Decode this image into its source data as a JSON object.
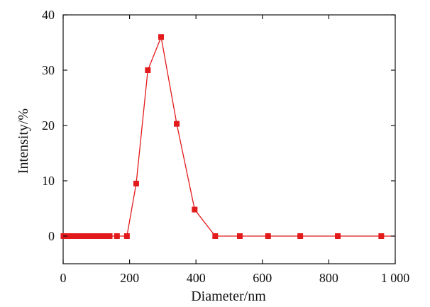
{
  "chart_data": {
    "type": "line",
    "title": "",
    "xlabel": "Diameter/nm",
    "ylabel": "Intensity/%",
    "xlim": [
      0,
      1000
    ],
    "ylim": [
      -5,
      40
    ],
    "xticks": [
      0,
      200,
      400,
      600,
      800,
      1000
    ],
    "xtick_labels": [
      "0",
      "200",
      "400",
      "600",
      "800",
      "1 000"
    ],
    "yticks": [
      0,
      10,
      20,
      30,
      40
    ],
    "ytick_labels": [
      "0",
      "10",
      "20",
      "30",
      "40"
    ],
    "grid": false,
    "legend": "none",
    "series": [
      {
        "color": "#e31a1c",
        "marker": "square",
        "x": [
          1,
          4,
          8,
          12,
          16,
          20,
          25,
          30,
          35,
          40,
          45,
          50,
          55,
          60,
          65,
          70,
          75,
          80,
          85,
          90,
          95,
          100,
          105,
          112,
          120,
          128,
          140,
          162,
          192,
          220,
          255,
          295,
          342,
          396,
          458,
          532,
          617,
          714,
          827,
          958
        ],
        "y": [
          0,
          0,
          0,
          0,
          0,
          0,
          0,
          0,
          0,
          0,
          0,
          0,
          0,
          0,
          0,
          0,
          0,
          0,
          0,
          0,
          0,
          0,
          0,
          0,
          0,
          0,
          0,
          0,
          0,
          9.5,
          30,
          36,
          20.3,
          4.8,
          0,
          0,
          0,
          0,
          0,
          0
        ]
      }
    ]
  }
}
